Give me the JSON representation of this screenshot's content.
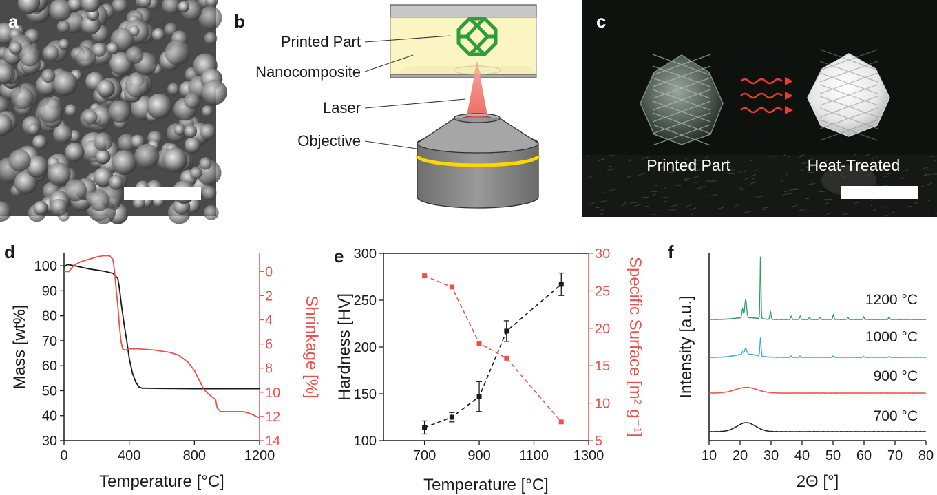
{
  "panels": {
    "a": {
      "label": "a"
    },
    "b": {
      "label": "b",
      "labels": {
        "printed_part": "Printed Part",
        "nanocomposite": "Nanocomposite",
        "laser": "Laser",
        "objective": "Objective"
      }
    },
    "c": {
      "label": "c",
      "left_caption": "Printed Part",
      "right_caption": "Heat-Treated"
    },
    "d": {
      "label": "d"
    },
    "e": {
      "label": "e"
    },
    "f": {
      "label": "f"
    }
  },
  "colors": {
    "black": "#1a1a1a",
    "red": "#f0504a",
    "green": "#2e9c60",
    "blue": "#3aa6e0",
    "print_green": "#2e9e3a",
    "objective_gray": "#8c8c8c",
    "ring_yellow": "#ffd700",
    "nano_yellow": "#fbf5c4"
  },
  "chart_data": [
    {
      "id": "d",
      "type": "line",
      "xlabel": "Temperature [°C]",
      "ylabel_left": "Mass [wt%]",
      "ylabel_right": "Shrinkage [%]",
      "xlim": [
        0,
        1200
      ],
      "xticks": [
        "0",
        "400",
        "800",
        "1200"
      ],
      "ylim_left": [
        30,
        105
      ],
      "yticks_left": [
        "30",
        "40",
        "50",
        "60",
        "70",
        "80",
        "90",
        "100"
      ],
      "ylim_right": [
        14,
        -1.5
      ],
      "yticks_right": [
        "0",
        "2",
        "4",
        "6",
        "8",
        "10",
        "12",
        "14"
      ],
      "series": [
        {
          "name": "Mass",
          "axis": "left",
          "color": "#1a1a1a",
          "x": [
            0,
            20,
            40,
            80,
            150,
            200,
            250,
            300,
            330,
            340,
            355,
            370,
            385,
            400,
            420,
            440,
            460,
            480,
            500,
            600,
            800,
            1000,
            1200
          ],
          "y": [
            99.5,
            100.5,
            100.3,
            99.8,
            98.8,
            98.3,
            97.8,
            97.0,
            95.0,
            91.0,
            83.0,
            76.0,
            70.0,
            63.0,
            57.0,
            53.5,
            51.5,
            51.0,
            51.0,
            50.9,
            50.8,
            50.8,
            50.8
          ]
        },
        {
          "name": "Shrinkage",
          "axis": "right",
          "color": "#f0504a",
          "x": [
            0,
            30,
            60,
            100,
            150,
            200,
            240,
            280,
            300,
            310,
            320,
            330,
            340,
            350,
            360,
            370,
            380,
            400,
            450,
            550,
            650,
            700,
            760,
            800,
            830,
            860,
            900,
            930,
            940,
            960,
            1000,
            1100,
            1150,
            1180,
            1200
          ],
          "y": [
            0.0,
            0.0,
            -0.5,
            -0.8,
            -1.0,
            -1.2,
            -1.3,
            -1.3,
            -1.0,
            0.0,
            1.5,
            2.8,
            4.5,
            5.8,
            6.4,
            6.5,
            6.5,
            6.4,
            6.4,
            6.5,
            6.7,
            6.9,
            7.5,
            8.2,
            9.0,
            9.8,
            10.3,
            10.6,
            11.3,
            11.6,
            11.6,
            11.6,
            11.8,
            12.0,
            12.1
          ]
        }
      ]
    },
    {
      "id": "e",
      "type": "scatter",
      "xlabel": "Temperature [°C]",
      "ylabel_left": "Hardness [HV]",
      "ylabel_right": "Specific Surface [m² g⁻¹]",
      "xlim": [
        550,
        1300
      ],
      "xticks": [
        "700",
        "900",
        "1100",
        "1300"
      ],
      "ylim_left": [
        100,
        300
      ],
      "yticks_left": [
        "100",
        "150",
        "200",
        "250",
        "300"
      ],
      "ylim_right": [
        5,
        30
      ],
      "yticks_right": [
        "5",
        "10",
        "15",
        "20",
        "25",
        "30"
      ],
      "series": [
        {
          "name": "Hardness",
          "axis": "left",
          "color": "#1a1a1a",
          "x": [
            700,
            800,
            900,
            1000,
            1200
          ],
          "y": [
            114,
            125,
            147,
            217,
            267
          ],
          "err": [
            7,
            5,
            16,
            11,
            12
          ]
        },
        {
          "name": "Specific Surface",
          "axis": "right",
          "color": "#f0504a",
          "x": [
            700,
            800,
            900,
            1000,
            1200
          ],
          "y": [
            27,
            25.5,
            18,
            16,
            7.5
          ]
        }
      ]
    },
    {
      "id": "f",
      "type": "line",
      "xlabel": "2Θ [°]",
      "ylabel": "Intensity [a.u.]",
      "xlim": [
        10,
        80
      ],
      "xticks": [
        "10",
        "20",
        "30",
        "40",
        "50",
        "60",
        "70",
        "80"
      ],
      "series": [
        {
          "name": "700 °C",
          "color": "#1a1a1a",
          "offset": 0.0,
          "peaks": [
            [
              22,
              3.0,
              14
            ]
          ]
        },
        {
          "name": "900 °C",
          "color": "#f0504a",
          "offset": 1.0,
          "peaks": [
            [
              22,
              3.5,
              9
            ]
          ]
        },
        {
          "name": "1000 °C",
          "color": "#3aa6e0",
          "offset": 2.0,
          "peaks": [
            [
              22,
              3.5,
              5
            ],
            [
              21.8,
              0.35,
              9
            ],
            [
              26.6,
              0.18,
              29
            ],
            [
              20.8,
              0.2,
              4
            ],
            [
              36.5,
              0.2,
              2
            ],
            [
              39.4,
              0.2,
              2
            ],
            [
              50.1,
              0.2,
              2
            ],
            [
              59.9,
              0.2,
              1.5
            ],
            [
              68.1,
              0.2,
              1.5
            ]
          ]
        },
        {
          "name": "1200 °C",
          "color": "#2e9c60",
          "offset": 3.0,
          "peaks": [
            [
              22,
              3.5,
              3
            ],
            [
              21.8,
              0.3,
              28
            ],
            [
              20.8,
              0.22,
              14
            ],
            [
              26.6,
              0.15,
              100
            ],
            [
              29.8,
              0.2,
              12
            ],
            [
              36.5,
              0.2,
              5
            ],
            [
              39.4,
              0.2,
              5
            ],
            [
              42.4,
              0.2,
              3
            ],
            [
              45.7,
              0.2,
              3
            ],
            [
              50.1,
              0.2,
              7
            ],
            [
              54.8,
              0.2,
              3
            ],
            [
              59.9,
              0.2,
              4
            ],
            [
              68.1,
              0.2,
              4
            ]
          ]
        }
      ]
    }
  ]
}
